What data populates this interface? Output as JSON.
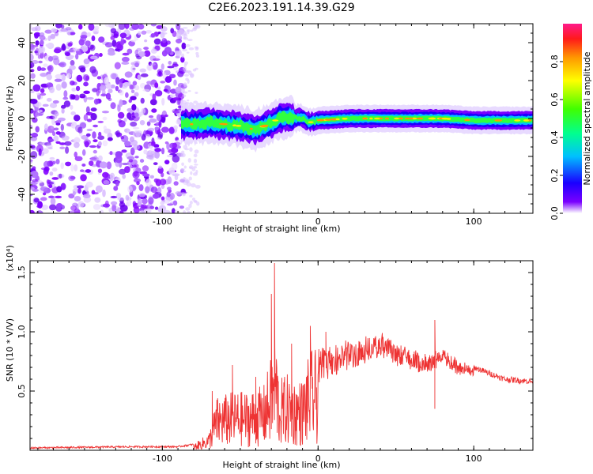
{
  "title": "C2E6.2023.191.14.39.G29",
  "chart_data": [
    {
      "type": "heatmap",
      "xlabel": "Height of straight line (km)",
      "ylabel": "Frequency (Hz)",
      "xlim": [
        -185,
        138
      ],
      "ylim": [
        -50,
        50
      ],
      "xticks": [
        -100,
        0,
        100
      ],
      "xtick_labels": [
        "-100",
        "0",
        "100"
      ],
      "yticks": [
        -40,
        -20,
        0,
        20,
        40
      ],
      "ytick_labels": [
        "-40",
        "-20",
        "0",
        "20",
        "40"
      ],
      "colorbar": {
        "label": "Normalized spectral amplitude",
        "range": [
          0,
          1
        ],
        "ticks": [
          0,
          0.2,
          0.4,
          0.6,
          0.8
        ],
        "tick_labels": [
          "0.0",
          "0.2",
          "0.4",
          "0.6",
          "0.8"
        ],
        "colormap": "rainbow"
      },
      "noise_region_x": [
        -185,
        -85
      ],
      "ridge": {
        "x": [
          -88,
          -80,
          -70,
          -60,
          -50,
          -40,
          -32,
          -25,
          -20,
          -15,
          -10,
          -5,
          0,
          20,
          40,
          60,
          80,
          100,
          120,
          138
        ],
        "freq": [
          -3,
          -3,
          -2,
          -3,
          -4,
          -6,
          -3,
          0,
          1,
          0,
          0,
          -2,
          -1,
          0,
          0,
          0,
          0,
          -1,
          -1,
          -1
        ]
      }
    },
    {
      "type": "line",
      "xlabel": "Height of straight line (km)",
      "ylabel": "SNR (10 * V/V)",
      "yunit": "(x10⁴)",
      "xlim": [
        -185,
        138
      ],
      "ylim": [
        0,
        1.6
      ],
      "xticks": [
        -100,
        0,
        100
      ],
      "xtick_labels": [
        "-100",
        "0",
        "100"
      ],
      "yticks": [
        0.5,
        1.0,
        1.5
      ],
      "ytick_labels": [
        "0.5",
        "1.0",
        "1.5"
      ],
      "envelope": {
        "x": [
          -185,
          -120,
          -90,
          -80,
          -70,
          -65,
          -55,
          -45,
          -35,
          -30,
          -27,
          -25,
          -20,
          -15,
          -10,
          -5,
          0,
          10,
          20,
          30,
          40,
          45,
          50,
          60,
          70,
          80,
          90,
          100,
          110,
          120,
          138
        ],
        "y": [
          0.02,
          0.03,
          0.03,
          0.05,
          0.15,
          0.45,
          0.5,
          0.5,
          0.55,
          0.8,
          1.0,
          0.6,
          0.65,
          0.6,
          0.6,
          0.85,
          0.85,
          0.88,
          0.92,
          0.95,
          0.98,
          0.97,
          0.9,
          0.85,
          0.8,
          0.85,
          0.75,
          0.7,
          0.65,
          0.6,
          0.58
        ]
      },
      "spikes": [
        {
          "x": -68,
          "y": 0.5
        },
        {
          "x": -55,
          "y": 0.72
        },
        {
          "x": -40,
          "y": 0.62
        },
        {
          "x": -30,
          "y": 1.32
        },
        {
          "x": -28,
          "y": 1.58
        },
        {
          "x": -17,
          "y": 0.9
        },
        {
          "x": -5,
          "y": 1.05
        },
        {
          "x": 5,
          "y": 1.0
        },
        {
          "x": 75,
          "y": 0.35
        },
        {
          "x": 75,
          "y": 1.1
        }
      ],
      "color": "#ee3333"
    }
  ]
}
